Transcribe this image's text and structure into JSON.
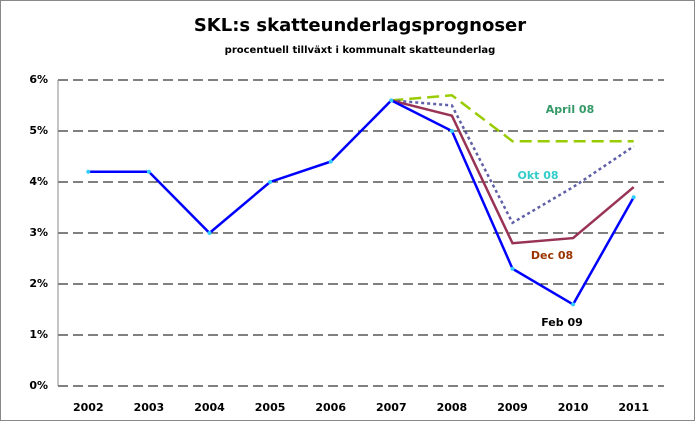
{
  "chart_data": {
    "type": "line",
    "title": "SKL:s skatteunderlagsprognoser",
    "subtitle": "procentuell tillväxt i kommunalt skatteunderlag",
    "categories": [
      "2002",
      "2003",
      "2004",
      "2005",
      "2006",
      "2007",
      "2008",
      "2009",
      "2010",
      "2011"
    ],
    "series": [
      {
        "name": "April 08",
        "color": "#99cc00",
        "label_color": "#339966",
        "dash": "dashed",
        "values": [
          null,
          null,
          null,
          null,
          null,
          5.6,
          5.7,
          4.8,
          4.8,
          4.8
        ]
      },
      {
        "name": "Okt 08",
        "color": "#6060a8",
        "label_color": "#33cccc",
        "dash": "dotted",
        "values": [
          null,
          null,
          null,
          null,
          null,
          5.6,
          5.5,
          3.2,
          3.9,
          4.7
        ]
      },
      {
        "name": "Dec 08",
        "color": "#993355",
        "label_color": "#993300",
        "dash": "solid",
        "values": [
          null,
          null,
          null,
          null,
          null,
          5.6,
          5.3,
          2.8,
          2.9,
          3.9
        ]
      },
      {
        "name": "Feb 09",
        "color": "#0000ff",
        "label_color": "#000000",
        "dash": "solid",
        "marker_color": "#33ccff",
        "values": [
          4.2,
          4.2,
          3.0,
          4.0,
          4.4,
          5.6,
          5.0,
          2.3,
          1.6,
          3.7
        ]
      }
    ],
    "ylim": [
      0,
      6
    ],
    "yticks": [
      {
        "value": 0,
        "label": "0%"
      },
      {
        "value": 1,
        "label": "1%"
      },
      {
        "value": 2,
        "label": "2%"
      },
      {
        "value": 3,
        "label": "3%"
      },
      {
        "value": 4,
        "label": "4%"
      },
      {
        "value": 5,
        "label": "5%"
      },
      {
        "value": 6,
        "label": "6%"
      }
    ],
    "grid": true
  }
}
